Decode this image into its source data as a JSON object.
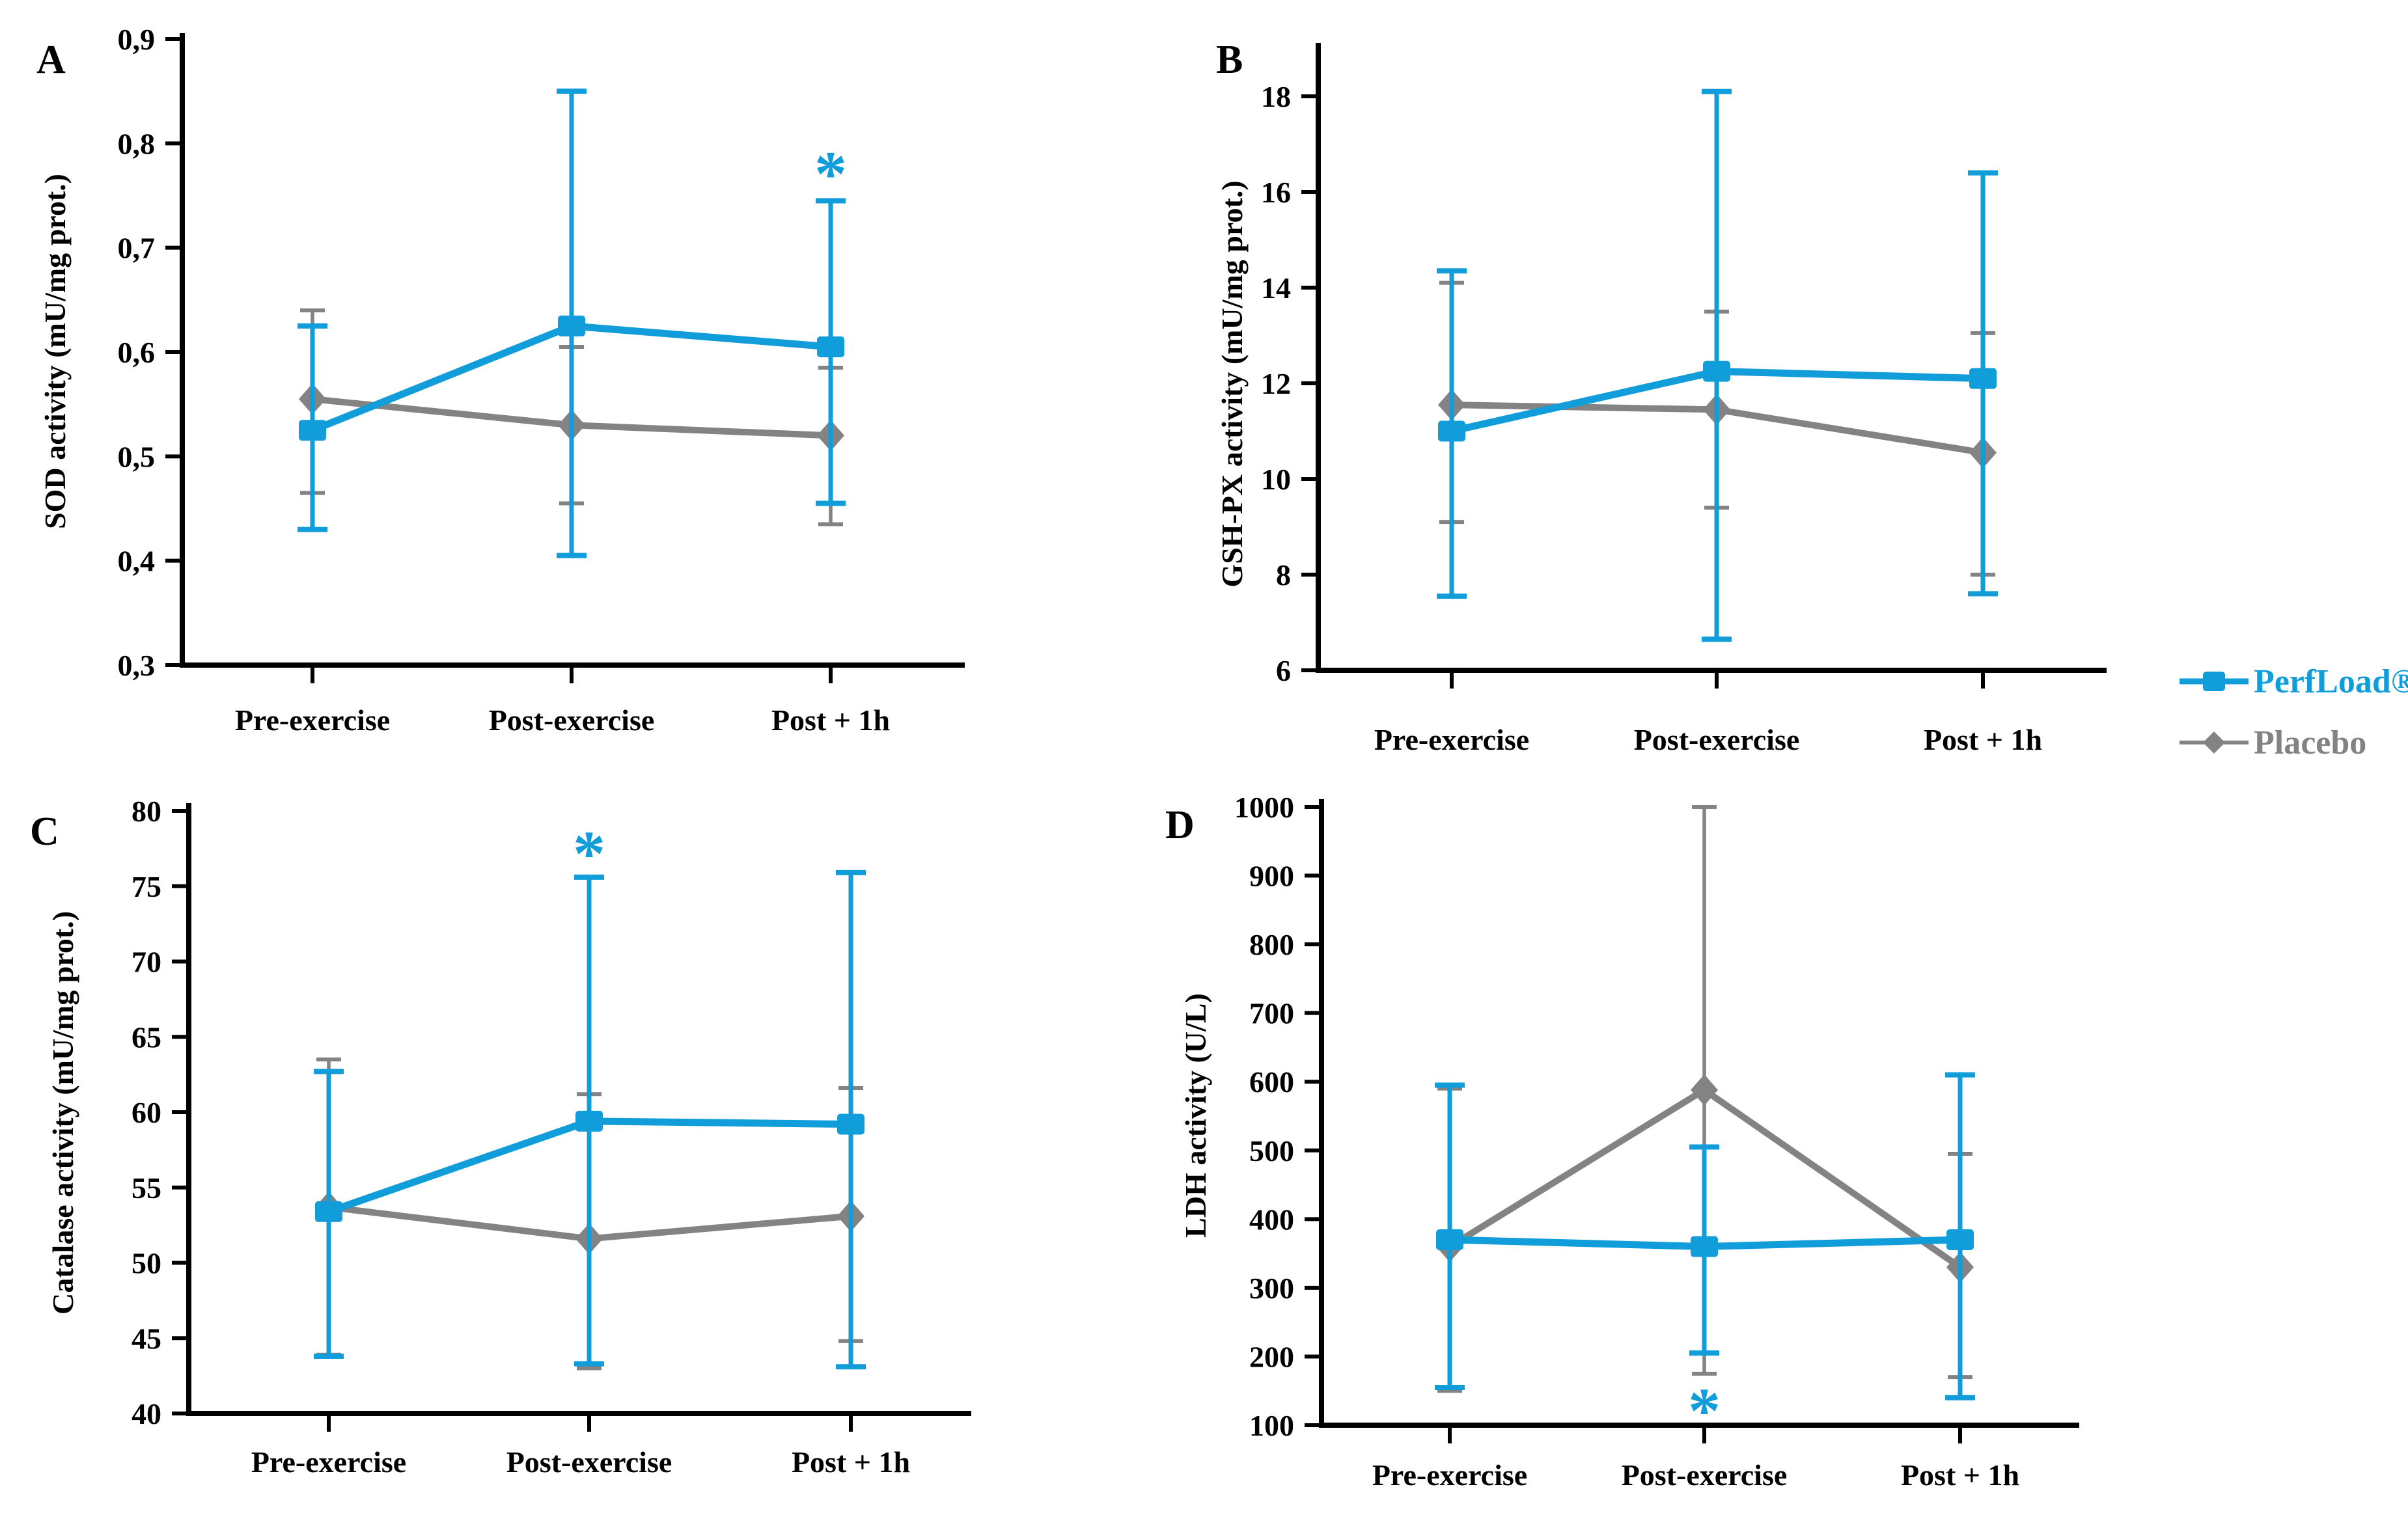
{
  "colors": {
    "perfload_blue": "#119dd9",
    "placebo_gray": "#838383",
    "axis_black": "#000000",
    "background": "#ffffff"
  },
  "legend": {
    "position": "right-center",
    "items": [
      {
        "label": "PerfLoad®",
        "marker": "square",
        "color_key": "perfload_blue"
      },
      {
        "label": "Placebo",
        "marker": "diamond",
        "color_key": "placebo_gray"
      }
    ]
  },
  "chart_data": [
    {
      "id": "A",
      "type": "line",
      "panel_label": "A",
      "ylabel": "SOD activity (mU/mg prot.)",
      "xlabel": "",
      "grid": false,
      "categories": [
        "Pre-exercise",
        "Post-exercise",
        "Post + 1h"
      ],
      "ylim": [
        0.3,
        0.9
      ],
      "ytick_values": [
        0.3,
        0.4,
        0.5,
        0.6,
        0.7,
        0.8,
        0.9
      ],
      "ytick_labels": [
        "0,3",
        "0,4",
        "0,5",
        "0,6",
        "0,7",
        "0,8",
        "0,9"
      ],
      "series": [
        {
          "name": "PerfLoad®",
          "marker": "square",
          "color_key": "perfload_blue",
          "values": [
            0.525,
            0.625,
            0.605
          ],
          "err_low": [
            0.43,
            0.405,
            0.455
          ],
          "err_high": [
            0.625,
            0.85,
            0.745
          ]
        },
        {
          "name": "Placebo",
          "marker": "diamond",
          "color_key": "placebo_gray",
          "values": [
            0.555,
            0.53,
            0.52
          ],
          "err_low": [
            0.465,
            0.455,
            0.435
          ],
          "err_high": [
            0.64,
            0.605,
            0.585
          ]
        }
      ],
      "annotations": [
        {
          "text": "*",
          "category": "Post + 1h",
          "value": 0.78,
          "color_key": "perfload_blue"
        }
      ]
    },
    {
      "id": "B",
      "type": "line",
      "panel_label": "B",
      "ylabel": "GSH-PX activity (mU/mg prot.)",
      "xlabel": "",
      "grid": false,
      "categories": [
        "Pre-exercise",
        "Post-exercise",
        "Post + 1h"
      ],
      "ylim": [
        6,
        18
      ],
      "ytick_values": [
        6,
        8,
        10,
        12,
        14,
        16,
        18
      ],
      "ytick_labels": [
        "6",
        "8",
        "10",
        "12",
        "14",
        "16",
        "18"
      ],
      "series": [
        {
          "name": "PerfLoad®",
          "marker": "square",
          "color_key": "perfload_blue",
          "values": [
            11.0,
            12.25,
            12.1
          ],
          "err_low": [
            7.55,
            6.65,
            7.6
          ],
          "err_high": [
            14.35,
            18.1,
            16.4
          ]
        },
        {
          "name": "Placebo",
          "marker": "diamond",
          "color_key": "placebo_gray",
          "values": [
            11.55,
            11.45,
            10.55
          ],
          "err_low": [
            9.1,
            9.4,
            8.0
          ],
          "err_high": [
            14.1,
            13.5,
            13.05
          ]
        }
      ],
      "annotations": []
    },
    {
      "id": "C",
      "type": "line",
      "panel_label": "C",
      "ylabel": "Catalase activity (mU/mg prot.)",
      "xlabel": "",
      "grid": false,
      "categories": [
        "Pre-exercise",
        "Post-exercise",
        "Post + 1h"
      ],
      "ylim": [
        40,
        80
      ],
      "ytick_values": [
        40,
        45,
        50,
        55,
        60,
        65,
        70,
        75,
        80
      ],
      "ytick_labels": [
        "40",
        "45",
        "50",
        "55",
        "60",
        "65",
        "70",
        "75",
        "80"
      ],
      "series": [
        {
          "name": "PerfLoad®",
          "marker": "square",
          "color_key": "perfload_blue",
          "values": [
            53.4,
            59.4,
            59.2
          ],
          "err_low": [
            43.8,
            43.3,
            43.1
          ],
          "err_high": [
            62.7,
            75.6,
            75.9
          ]
        },
        {
          "name": "Placebo",
          "marker": "diamond",
          "color_key": "placebo_gray",
          "values": [
            53.7,
            51.6,
            53.1
          ],
          "err_low": [
            43.9,
            43.0,
            44.8
          ],
          "err_high": [
            63.5,
            61.2,
            61.6
          ]
        }
      ],
      "annotations": [
        {
          "text": "*",
          "category": "Post-exercise",
          "value": 77.8,
          "color_key": "perfload_blue"
        }
      ]
    },
    {
      "id": "D",
      "type": "line",
      "panel_label": "D",
      "ylabel": "LDH activity (U/L)",
      "xlabel": "",
      "grid": false,
      "categories": [
        "Pre-exercise",
        "Post-exercise",
        "Post + 1h"
      ],
      "ylim": [
        100,
        1000
      ],
      "ytick_values": [
        100,
        200,
        300,
        400,
        500,
        600,
        700,
        800,
        900,
        1000
      ],
      "ytick_labels": [
        "100",
        "200",
        "300",
        "400",
        "500",
        "600",
        "700",
        "800",
        "900",
        "1000"
      ],
      "series": [
        {
          "name": "PerfLoad®",
          "marker": "square",
          "color_key": "perfload_blue",
          "values": [
            370,
            360,
            370
          ],
          "err_low": [
            155,
            205,
            140
          ],
          "err_high": [
            595,
            505,
            610
          ]
        },
        {
          "name": "Placebo",
          "marker": "diamond",
          "color_key": "placebo_gray",
          "values": [
            360,
            588,
            330
          ],
          "err_low": [
            150,
            175,
            170
          ],
          "err_high": [
            590,
            1000,
            495
          ]
        }
      ],
      "annotations": [
        {
          "text": "*",
          "category": "Post-exercise",
          "value": 135,
          "color_key": "perfload_blue"
        }
      ]
    }
  ]
}
